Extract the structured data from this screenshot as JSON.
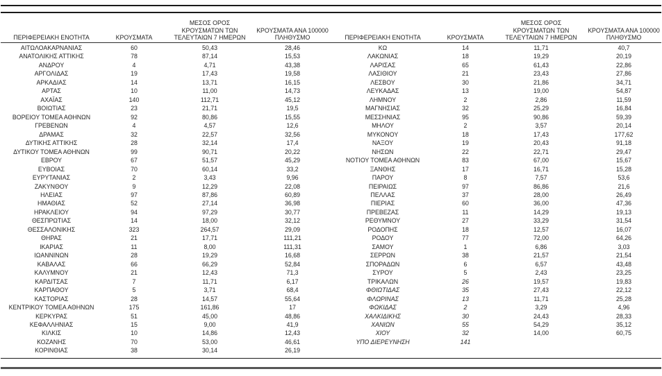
{
  "colors": {
    "text": "#262626",
    "rule_dark": "#1a1a1a",
    "rule_gray": "#565656"
  },
  "table": {
    "headers": {
      "region": "ΠΕΡΙΦΕΡΕΙΑΚΗ ΕΝΟΤΗΤΑ",
      "cases": "ΚΡΟΥΣΜΑΤΑ",
      "avg7_line1": "ΜΕΣΟΣ ΟΡΟΣ",
      "avg7_line2": "ΚΡΟΥΣΜΑΤΩΝ ΤΩΝ",
      "avg7_line3": "ΤΕΛΕΥΤΑΙΩΝ 7 ΗΜΕΡΩΝ",
      "per100k_line1": "ΚΡΟΥΣΜΑΤΑ ΑΝΑ 100000",
      "per100k_line2": "ΠΛΗΘΥΣΜΟ"
    },
    "left_rows": [
      {
        "region": "ΑΙΤΩΛΟΑΚΑΡΝΑΝΙΑΣ",
        "cases": "60",
        "avg7": "50,43",
        "per100k": "28,46"
      },
      {
        "region": "ΑΝΑΤΟΛΙΚΗΣ ΑΤΤΙΚΗΣ",
        "cases": "78",
        "avg7": "87,14",
        "per100k": "15,53"
      },
      {
        "region": "ΑΝΔΡΟΥ",
        "cases": "4",
        "avg7": "4,71",
        "per100k": "43,38"
      },
      {
        "region": "ΑΡΓΟΛΙΔΑΣ",
        "cases": "19",
        "avg7": "17,43",
        "per100k": "19,58"
      },
      {
        "region": "ΑΡΚΑΔΙΑΣ",
        "cases": "14",
        "avg7": "13,71",
        "per100k": "16,15"
      },
      {
        "region": "ΑΡΤΑΣ",
        "cases": "10",
        "avg7": "11,00",
        "per100k": "14,73"
      },
      {
        "region": "ΑΧΑΪΑΣ",
        "cases": "140",
        "avg7": "112,71",
        "per100k": "45,12"
      },
      {
        "region": "ΒΟΙΩΤΙΑΣ",
        "cases": "23",
        "avg7": "21,71",
        "per100k": "19,5"
      },
      {
        "region": "ΒΟΡΕΙΟΥ ΤΟΜΕΑ ΑΘΗΝΩΝ",
        "cases": "92",
        "avg7": "80,86",
        "per100k": "15,55"
      },
      {
        "region": "ΓΡΕΒΕΝΩΝ",
        "cases": "4",
        "avg7": "4,57",
        "per100k": "12,6"
      },
      {
        "region": "ΔΡΑΜΑΣ",
        "cases": "32",
        "avg7": "22,57",
        "per100k": "32,56"
      },
      {
        "region": "ΔΥΤΙΚΗΣ ΑΤΤΙΚΗΣ",
        "cases": "28",
        "avg7": "32,14",
        "per100k": "17,4"
      },
      {
        "region": "ΔΥΤΙΚΟΥ ΤΟΜΕΑ ΑΘΗΝΩΝ",
        "cases": "99",
        "avg7": "90,71",
        "per100k": "20,22"
      },
      {
        "region": "ΕΒΡΟΥ",
        "cases": "67",
        "avg7": "51,57",
        "per100k": "45,29"
      },
      {
        "region": "ΕΥΒΟΙΑΣ",
        "cases": "70",
        "avg7": "60,14",
        "per100k": "33,2"
      },
      {
        "region": "ΕΥΡΥΤΑΝΙΑΣ",
        "cases": "2",
        "avg7": "3,43",
        "per100k": "9,96"
      },
      {
        "region": "ΖΑΚΥΝΘΟΥ",
        "cases": "9",
        "avg7": "12,29",
        "per100k": "22,08"
      },
      {
        "region": "ΗΛΕΙΑΣ",
        "cases": "97",
        "avg7": "87,86",
        "per100k": "60,89"
      },
      {
        "region": "ΗΜΑΘΙΑΣ",
        "cases": "52",
        "avg7": "27,14",
        "per100k": "36,98"
      },
      {
        "region": "ΗΡΑΚΛΕΙΟΥ",
        "cases": "94",
        "avg7": "97,29",
        "per100k": "30,77"
      },
      {
        "region": "ΘΕΣΠΡΩΤΙΑΣ",
        "cases": "14",
        "avg7": "18,00",
        "per100k": "32,12"
      },
      {
        "region": "ΘΕΣΣΑΛΟΝΙΚΗΣ",
        "cases": "323",
        "avg7": "264,57",
        "per100k": "29,09"
      },
      {
        "region": "ΘΗΡΑΣ",
        "cases": "21",
        "avg7": "17,71",
        "per100k": "111,21"
      },
      {
        "region": "ΙΚΑΡΙΑΣ",
        "cases": "11",
        "avg7": "8,00",
        "per100k": "111,31"
      },
      {
        "region": "ΙΩΑΝΝΙΝΩΝ",
        "cases": "28",
        "avg7": "19,29",
        "per100k": "16,68"
      },
      {
        "region": "ΚΑΒΑΛΑΣ",
        "cases": "66",
        "avg7": "66,29",
        "per100k": "52,84"
      },
      {
        "region": "ΚΑΛΥΜΝΟΥ",
        "cases": "21",
        "avg7": "12,43",
        "per100k": "71,3"
      },
      {
        "region": "ΚΑΡΔΙΤΣΑΣ",
        "cases": "7",
        "avg7": "11,71",
        "per100k": "6,17"
      },
      {
        "region": "ΚΑΡΠΑΘΟΥ",
        "cases": "5",
        "avg7": "3,71",
        "per100k": "68,4"
      },
      {
        "region": "ΚΑΣΤΟΡΙΑΣ",
        "cases": "28",
        "avg7": "14,57",
        "per100k": "55,64"
      },
      {
        "region": "ΚΕΝΤΡΙΚΟΥ ΤΟΜΕΑ ΑΘΗΝΩΝ",
        "cases": "175",
        "avg7": "161,86",
        "per100k": "17"
      },
      {
        "region": "ΚΕΡΚΥΡΑΣ",
        "cases": "51",
        "avg7": "45,00",
        "per100k": "48,86"
      },
      {
        "region": "ΚΕΦΑΛΛΗΝΙΑΣ",
        "cases": "15",
        "avg7": "9,00",
        "per100k": "41,9"
      },
      {
        "region": "ΚΙΛΚΙΣ",
        "cases": "10",
        "avg7": "14,86",
        "per100k": "12,43"
      },
      {
        "region": "ΚΟΖΑΝΗΣ",
        "cases": "70",
        "avg7": "53,00",
        "per100k": "46,61"
      },
      {
        "region": "ΚΟΡΙΝΘΙΑΣ",
        "cases": "38",
        "avg7": "30,14",
        "per100k": "26,19"
      }
    ],
    "right_rows": [
      {
        "region": "ΚΩ",
        "cases": "14",
        "avg7": "11,71",
        "per100k": "40,7"
      },
      {
        "region": "ΛΑΚΩΝΙΑΣ",
        "cases": "18",
        "avg7": "19,29",
        "per100k": "20,19"
      },
      {
        "region": "ΛΑΡΙΣΑΣ",
        "cases": "65",
        "avg7": "61,43",
        "per100k": "22,86"
      },
      {
        "region": "ΛΑΣΙΘΙΟΥ",
        "cases": "21",
        "avg7": "23,43",
        "per100k": "27,86"
      },
      {
        "region": "ΛΕΣΒΟΥ",
        "cases": "30",
        "avg7": "21,86",
        "per100k": "34,71"
      },
      {
        "region": "ΛΕΥΚΑΔΑΣ",
        "cases": "13",
        "avg7": "19,00",
        "per100k": "54,87"
      },
      {
        "region": "ΛΗΜΝΟΥ",
        "cases": "2",
        "avg7": "2,86",
        "per100k": "11,59"
      },
      {
        "region": "ΜΑΓΝΗΣΙΑΣ",
        "cases": "32",
        "avg7": "25,29",
        "per100k": "16,84"
      },
      {
        "region": "ΜΕΣΣΗΝΙΑΣ",
        "cases": "95",
        "avg7": "90,86",
        "per100k": "59,39"
      },
      {
        "region": "ΜΗΛΟΥ",
        "cases": "2",
        "avg7": "3,57",
        "per100k": "20,14"
      },
      {
        "region": "ΜΥΚΟΝΟΥ",
        "cases": "18",
        "avg7": "17,43",
        "per100k": "177,62"
      },
      {
        "region": "ΝΑΞΟΥ",
        "cases": "19",
        "avg7": "20,43",
        "per100k": "91,18"
      },
      {
        "region": "ΝΗΣΩΝ",
        "cases": "22",
        "avg7": "22,71",
        "per100k": "29,47"
      },
      {
        "region": "ΝΟΤΙΟΥ ΤΟΜΕΑ ΑΘΗΝΩΝ",
        "cases": "83",
        "avg7": "67,00",
        "per100k": "15,67"
      },
      {
        "region": "ΞΑΝΘΗΣ",
        "cases": "17",
        "avg7": "16,71",
        "per100k": "15,28"
      },
      {
        "region": "ΠΑΡΟΥ",
        "cases": "8",
        "avg7": "7,57",
        "per100k": "53,6"
      },
      {
        "region": "ΠΕΙΡΑΙΩΣ",
        "cases": "97",
        "avg7": "86,86",
        "per100k": "21,6"
      },
      {
        "region": "ΠΕΛΛΑΣ",
        "cases": "37",
        "avg7": "28,00",
        "per100k": "26,49"
      },
      {
        "region": "ΠΙΕΡΙΑΣ",
        "cases": "60",
        "avg7": "36,00",
        "per100k": "47,36"
      },
      {
        "region": "ΠΡΕΒΕΖΑΣ",
        "cases": "11",
        "avg7": "14,29",
        "per100k": "19,13"
      },
      {
        "region": "ΡΕΘΥΜΝΟΥ",
        "cases": "27",
        "avg7": "33,29",
        "per100k": "31,54"
      },
      {
        "region": "ΡΟΔΟΠΗΣ",
        "cases": "18",
        "avg7": "12,57",
        "per100k": "16,07"
      },
      {
        "region": "ΡΟΔΟΥ",
        "cases": "77",
        "avg7": "72,00",
        "per100k": "64,26"
      },
      {
        "region": "ΣΑΜΟΥ",
        "cases": "1",
        "avg7": "6,86",
        "per100k": "3,03"
      },
      {
        "region": "ΣΕΡΡΩΝ",
        "cases": "38",
        "avg7": "21,57",
        "per100k": "21,54"
      },
      {
        "region": "ΣΠΟΡΑΔΩΝ",
        "cases": "6",
        "avg7": "6,57",
        "per100k": "43,48"
      },
      {
        "region": "ΣΥΡΟΥ",
        "cases": "5",
        "avg7": "2,43",
        "per100k": "23,25"
      },
      {
        "region": "ΤΡΙΚΑΛΩΝ",
        "cases": "26",
        "avg7": "19,57",
        "per100k": "19,83",
        "italic_cases": true
      },
      {
        "region": "ΦΘΙΩΤΙΔΑΣ",
        "cases": "35",
        "avg7": "27,43",
        "per100k": "22,12",
        "italic_region": true,
        "italic_cases": true
      },
      {
        "region": "ΦΛΩΡΙΝΑΣ",
        "cases": "13",
        "avg7": "11,71",
        "per100k": "25,28",
        "italic_region": true,
        "italic_cases": true
      },
      {
        "region": "ΦΩΚΙΔΑΣ",
        "cases": "2",
        "avg7": "3,29",
        "per100k": "4,96",
        "italic_region": true,
        "italic_cases": true
      },
      {
        "region": "ΧΑΛΚΙΔΙΚΗΣ",
        "cases": "30",
        "avg7": "24,43",
        "per100k": "28,33",
        "italic_region": true,
        "italic_cases": true
      },
      {
        "region": "ΧΑΝΙΩΝ",
        "cases": "55",
        "avg7": "54,29",
        "per100k": "35,12",
        "italic_region": true,
        "italic_cases": true
      },
      {
        "region": "ΧΙΟΥ",
        "cases": "32",
        "avg7": "14,00",
        "per100k": "60,75",
        "italic_region": true,
        "italic_cases": true
      },
      {
        "region": "ΥΠΟ ΔΙΕΡΕΥΝΗΣΗ",
        "cases": "141",
        "avg7": "",
        "per100k": "",
        "italic_region": true,
        "italic_cases": true
      }
    ]
  }
}
